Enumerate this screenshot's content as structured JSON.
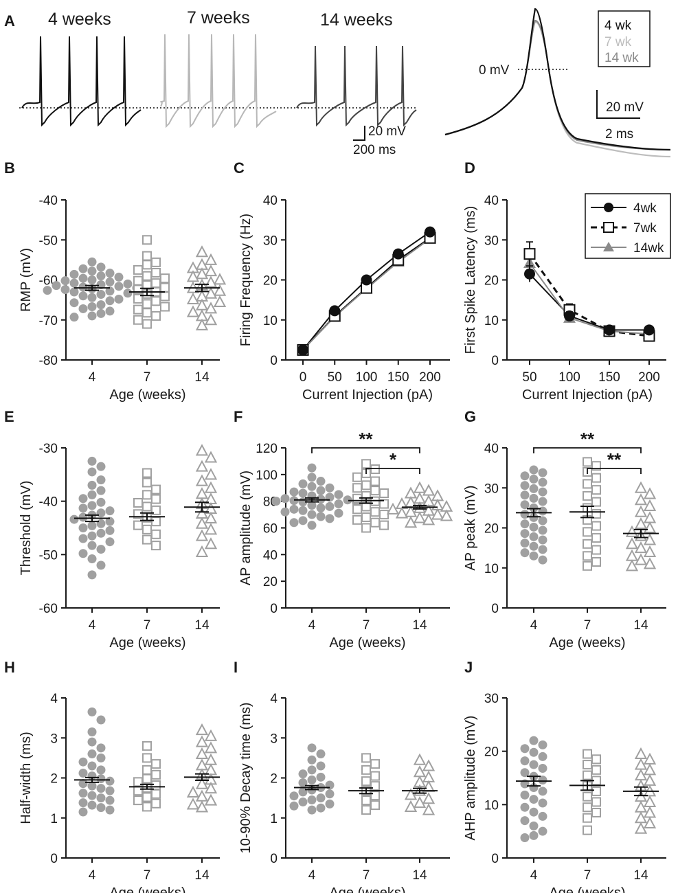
{
  "colors": {
    "black": "#111111",
    "gray": "#a0a0a0",
    "darkgray": "#8a8a8a",
    "lightgray": "#bdbdbd",
    "trace14": "#444444"
  },
  "panel_a": {
    "label": "A",
    "group_headers": [
      "4 weeks",
      "7 weeks",
      "14 weeks"
    ],
    "scale_left": {
      "vertical": "20 mV",
      "horizontal": "200 ms"
    },
    "overlay_zero_label": "0 mV",
    "overlay_legend": [
      "4 wk",
      "7 wk",
      "14 wk"
    ],
    "scale_right": {
      "vertical": "20 mV",
      "horizontal": "2 ms"
    }
  },
  "chart_data": [
    {
      "panel": "B",
      "type": "scatter",
      "ylabel": "RMP (mV)",
      "xlabel": "Age (weeks)",
      "categories": [
        "4",
        "7",
        "14"
      ],
      "ylim": [
        -80,
        -40
      ],
      "yticks": [
        -80,
        -70,
        -60,
        -50,
        -40
      ],
      "means": [
        -62,
        -63,
        -62
      ],
      "sem": [
        0.6,
        0.9,
        0.9
      ],
      "points": [
        [
          -55.5,
          -56.8,
          -57.2,
          -57.8,
          -58.3,
          -58.6,
          -59,
          -59.3,
          -59.6,
          -60,
          -60.2,
          -60.5,
          -60.8,
          -61,
          -61.2,
          -61.4,
          -61.6,
          -61.8,
          -62,
          -62.2,
          -62.4,
          -62.6,
          -62.8,
          -63,
          -63.3,
          -63.6,
          -64,
          -64.4,
          -64.8,
          -65.2,
          -65.7,
          -66.2,
          -66.7,
          -67.2,
          -67.8,
          -68.4,
          -69,
          -69.3
        ],
        [
          -50,
          -54,
          -55.6,
          -56.2,
          -57.5,
          -58.2,
          -59,
          -59.6,
          -60.2,
          -60.8,
          -61.3,
          -61.9,
          -62.4,
          -63,
          -63.5,
          -64.1,
          -64.7,
          -65.3,
          -66,
          -66.7,
          -67.4,
          -68.2,
          -69,
          -70,
          -71
        ],
        [
          -53,
          -55,
          -56.2,
          -57,
          -57.8,
          -58.5,
          -59.2,
          -59.9,
          -60.6,
          -61.3,
          -62,
          -62.7,
          -63.4,
          -64.1,
          -64.8,
          -65.5,
          -66.3,
          -67.1,
          -68,
          -69,
          -70,
          -71.3
        ]
      ]
    },
    {
      "panel": "C",
      "type": "line",
      "ylabel": "Firing Frequency (Hz)",
      "xlabel": "Current Injection (pA)",
      "x": [
        0,
        50,
        100,
        150,
        200
      ],
      "ylim": [
        0,
        40
      ],
      "yticks": [
        0,
        10,
        20,
        30,
        40
      ],
      "series": [
        {
          "name": "4wk",
          "values": [
            2.5,
            12.3,
            20,
            26.5,
            32
          ]
        },
        {
          "name": "7wk",
          "values": [
            2.5,
            11,
            18,
            25,
            30.5
          ]
        },
        {
          "name": "14wk",
          "values": [
            2.5,
            10.8,
            17.8,
            24.5,
            30.3
          ]
        }
      ]
    },
    {
      "panel": "D",
      "type": "line",
      "ylabel": "First Spike Latency (ms)",
      "xlabel": "Current Injection (pA)",
      "x": [
        50,
        100,
        150,
        200
      ],
      "ylim": [
        0,
        40
      ],
      "yticks": [
        0,
        10,
        20,
        30,
        40
      ],
      "series": [
        {
          "name": "4wk",
          "values": [
            21.5,
            11,
            7.5,
            7.5
          ],
          "err": [
            2,
            1,
            0.6,
            0.6
          ]
        },
        {
          "name": "7wk",
          "values": [
            26.5,
            12.5,
            7.2,
            6
          ],
          "err": [
            3,
            1.5,
            0.6,
            0.6
          ]
        },
        {
          "name": "14wk",
          "values": [
            24.2,
            10.5,
            7.2,
            6.5
          ],
          "err": [
            1.5,
            1,
            0.6,
            0.6
          ]
        }
      ],
      "legend": [
        "4wk",
        "7wk",
        "14wk"
      ]
    },
    {
      "panel": "E",
      "type": "scatter",
      "ylabel": "Threshold (mV)",
      "xlabel": "Age (weeks)",
      "categories": [
        "4",
        "7",
        "14"
      ],
      "ylim": [
        -60,
        -30
      ],
      "yticks": [
        -60,
        -50,
        -40,
        -30
      ],
      "means": [
        -43.2,
        -42.9,
        -41.1
      ],
      "sem": [
        0.6,
        0.7,
        0.9
      ],
      "points": [
        [
          -32.5,
          -33.5,
          -34.5,
          -36,
          -37,
          -38,
          -38.8,
          -39.5,
          -40.2,
          -40.8,
          -41.3,
          -41.8,
          -42.2,
          -42.6,
          -43,
          -43.4,
          -43.8,
          -44.2,
          -44.6,
          -45,
          -45.5,
          -46,
          -46.5,
          -47,
          -47.6,
          -48.3,
          -49,
          -49.8,
          -50.8,
          -52,
          -53.8
        ],
        [
          -34.7,
          -36.5,
          -37.8,
          -38.8,
          -39.6,
          -40.3,
          -41,
          -41.7,
          -42.4,
          -43.1,
          -43.8,
          -44.5,
          -45.3,
          -46.2,
          -47.2,
          -48.3
        ],
        [
          -30.5,
          -31.8,
          -33.5,
          -35,
          -36.2,
          -37.5,
          -38.6,
          -39.6,
          -40.5,
          -41.4,
          -42.3,
          -43.2,
          -44.2,
          -45.3,
          -46.5,
          -48,
          -49.5
        ]
      ]
    },
    {
      "panel": "F",
      "type": "scatter",
      "ylabel": "AP amplitude (mV)",
      "xlabel": "Age (weeks)",
      "categories": [
        "4",
        "7",
        "14"
      ],
      "ylim": [
        0,
        120
      ],
      "yticks": [
        0,
        20,
        40,
        60,
        80,
        100,
        120
      ],
      "means": [
        81,
        80.5,
        75.5
      ],
      "sem": [
        1.5,
        2,
        1.3
      ],
      "significance": [
        {
          "from": "4",
          "to": "14",
          "label": "**"
        },
        {
          "from": "7",
          "to": "14",
          "label": "*"
        }
      ],
      "points": [
        [
          105,
          98,
          95,
          93,
          91,
          90,
          88,
          87,
          86,
          85,
          84,
          83,
          82,
          81.5,
          81,
          80.5,
          80,
          79.5,
          79,
          78,
          77,
          76,
          75,
          74,
          73,
          72,
          71,
          70,
          68.5,
          67,
          65.5,
          64,
          62
        ],
        [
          108,
          104,
          101,
          98,
          95,
          92,
          90,
          88,
          86,
          84,
          82,
          80,
          78,
          76,
          74,
          72,
          70,
          68,
          66,
          64,
          62,
          60
        ],
        [
          90,
          88,
          86,
          84,
          82,
          80,
          79,
          78,
          77,
          76,
          75,
          74,
          73,
          72,
          71,
          70,
          69,
          67.5,
          66,
          64
        ]
      ]
    },
    {
      "panel": "G",
      "type": "scatter",
      "ylabel": "AP peak (mV)",
      "xlabel": "Age (weeks)",
      "categories": [
        "4",
        "7",
        "14"
      ],
      "ylim": [
        0,
        40
      ],
      "yticks": [
        0,
        10,
        20,
        30,
        40
      ],
      "means": [
        23.8,
        24,
        18.6
      ],
      "sem": [
        1,
        1.4,
        1
      ],
      "significance": [
        {
          "from": "4",
          "to": "14",
          "label": "**"
        },
        {
          "from": "7",
          "to": "14",
          "label": "**"
        }
      ],
      "points": [
        [
          34.5,
          33.8,
          33,
          32.2,
          31.4,
          30.6,
          29.8,
          29,
          28.2,
          27.4,
          26.6,
          25.8,
          25,
          24.2,
          23.4,
          22.6,
          21.8,
          21,
          20.2,
          19.4,
          18.6,
          17.8,
          17,
          16.2,
          15.4,
          14.6,
          13.8,
          13,
          12
        ],
        [
          36.5,
          35.5,
          34,
          32.5,
          31,
          29.5,
          28,
          26.5,
          25,
          23.5,
          22,
          20.5,
          19,
          17.5,
          16,
          14.5,
          13,
          11.5,
          10.5
        ],
        [
          30,
          28.5,
          27,
          25.5,
          24,
          22.5,
          21,
          20,
          19,
          18,
          17,
          16,
          15,
          14,
          13,
          12,
          11,
          10.5
        ]
      ]
    },
    {
      "panel": "H",
      "type": "scatter",
      "ylabel": "Half-width (ms)",
      "xlabel": "Age (weeks)",
      "categories": [
        "4",
        "7",
        "14"
      ],
      "ylim": [
        0,
        4
      ],
      "yticks": [
        0,
        1,
        2,
        3,
        4
      ],
      "means": [
        1.95,
        1.78,
        2.02
      ],
      "sem": [
        0.06,
        0.06,
        0.08
      ],
      "points": [
        [
          3.65,
          3.45,
          3.15,
          2.9,
          2.75,
          2.6,
          2.5,
          2.4,
          2.3,
          2.2,
          2.12,
          2.05,
          1.98,
          1.92,
          1.86,
          1.8,
          1.74,
          1.68,
          1.62,
          1.56,
          1.5,
          1.44,
          1.38,
          1.32,
          1.26,
          1.2,
          1.15
        ],
        [
          2.8,
          2.5,
          2.35,
          2.2,
          2.08,
          1.98,
          1.9,
          1.82,
          1.75,
          1.68,
          1.6,
          1.52,
          1.44,
          1.36,
          1.28
        ],
        [
          3.2,
          3.05,
          2.9,
          2.75,
          2.6,
          2.45,
          2.32,
          2.2,
          2.08,
          1.96,
          1.85,
          1.74,
          1.64,
          1.54,
          1.44,
          1.34,
          1.27
        ]
      ]
    },
    {
      "panel": "I",
      "type": "scatter",
      "ylabel": "10-90% Decay time (ms)",
      "xlabel": "Age (weeks)",
      "categories": [
        "4",
        "7",
        "14"
      ],
      "ylim": [
        0,
        4
      ],
      "yticks": [
        0,
        1,
        2,
        3,
        4
      ],
      "means": [
        1.76,
        1.68,
        1.68
      ],
      "sem": [
        0.05,
        0.07,
        0.06
      ],
      "points": [
        [
          2.75,
          2.6,
          2.45,
          2.3,
          2.2,
          2.1,
          2.02,
          1.95,
          1.88,
          1.82,
          1.76,
          1.7,
          1.65,
          1.6,
          1.55,
          1.5,
          1.45,
          1.4,
          1.35,
          1.3,
          1.25,
          1.2
        ],
        [
          2.5,
          2.35,
          2.2,
          2.05,
          1.92,
          1.8,
          1.68,
          1.56,
          1.44,
          1.32,
          1.2
        ],
        [
          2.45,
          2.3,
          2.15,
          2.02,
          1.9,
          1.78,
          1.68,
          1.58,
          1.48,
          1.38,
          1.28,
          1.2
        ]
      ]
    },
    {
      "panel": "J",
      "type": "scatter",
      "ylabel": "AHP amplitude (mV)",
      "xlabel": "Age (weeks)",
      "categories": [
        "4",
        "7",
        "14"
      ],
      "ylim": [
        0,
        30
      ],
      "yticks": [
        0,
        10,
        20,
        30
      ],
      "means": [
        14.4,
        13.6,
        12.5
      ],
      "sem": [
        0.9,
        0.9,
        0.8
      ],
      "points": [
        [
          22,
          21.2,
          20.5,
          19.8,
          19,
          18.2,
          17.5,
          16.8,
          16,
          15.3,
          14.6,
          13.9,
          13.2,
          12.5,
          11.8,
          11,
          10.3,
          9.5,
          8.6,
          7.8,
          7,
          6,
          5,
          4.2,
          3.8
        ],
        [
          19.5,
          18.5,
          17.5,
          16.5,
          15.5,
          14.5,
          13.5,
          12.5,
          11.5,
          10.5,
          9.5,
          8.5,
          7.5,
          5.2
        ],
        [
          19.5,
          18.5,
          17.5,
          16.5,
          15.5,
          14.5,
          13.5,
          12.5,
          11.5,
          10.5,
          9.5,
          8.5,
          7.5,
          6.5,
          5.5
        ]
      ]
    }
  ]
}
